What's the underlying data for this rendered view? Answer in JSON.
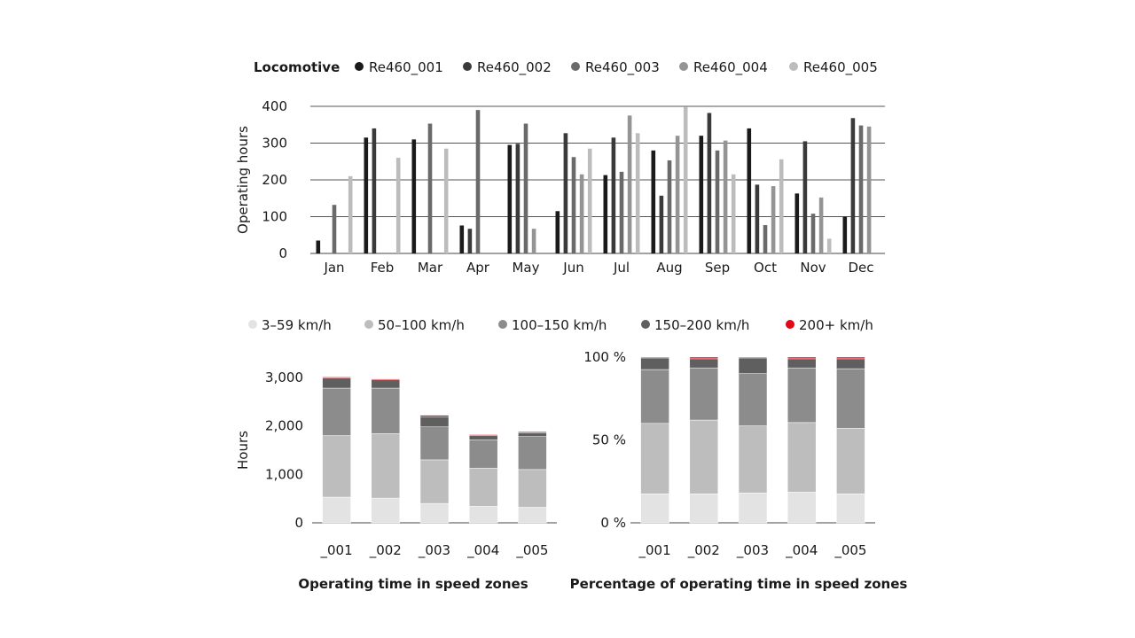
{
  "chart_data": [
    {
      "type": "bar",
      "legend_title": "Locomotive",
      "legend_placement": "top",
      "ylabel": "Operating hours",
      "xlabel": "",
      "ylim": [
        0,
        400
      ],
      "yticks": [
        0,
        100,
        200,
        300,
        400
      ],
      "ytick_labels": [
        "0",
        "100",
        "200",
        "300",
        "400"
      ],
      "grid": true,
      "categories": [
        "Jan",
        "Feb",
        "Mar",
        "Apr",
        "May",
        "Jun",
        "Jul",
        "Aug",
        "Sep",
        "Oct",
        "Nov",
        "Dec"
      ],
      "series": [
        {
          "name": "Re460_001",
          "color": "#1a1a1a",
          "values": [
            35,
            315,
            310,
            76,
            295,
            115,
            213,
            280,
            320,
            340,
            163,
            100
          ]
        },
        {
          "name": "Re460_002",
          "color": "#3a3a3a",
          "values": [
            0,
            340,
            0,
            67,
            298,
            327,
            315,
            157,
            382,
            187,
            305,
            368
          ]
        },
        {
          "name": "Re460_003",
          "color": "#6a6a6a",
          "values": [
            132,
            0,
            353,
            390,
            353,
            262,
            222,
            253,
            280,
            77,
            108,
            348
          ]
        },
        {
          "name": "Re460_004",
          "color": "#949494",
          "values": [
            0,
            0,
            0,
            0,
            67,
            215,
            375,
            320,
            307,
            183,
            152,
            345
          ]
        },
        {
          "name": "Re460_005",
          "color": "#bcbcbc",
          "values": [
            210,
            260,
            285,
            0,
            0,
            285,
            327,
            398,
            215,
            256,
            40,
            0
          ]
        }
      ]
    },
    {
      "type": "bar",
      "stacked": true,
      "title": "Operating time in speed zones",
      "ylabel": "Hours",
      "xlabel": "",
      "ylim": [
        0,
        3000
      ],
      "yticks": [
        0,
        1000,
        2000,
        3000
      ],
      "ytick_labels": [
        "0",
        "1,000",
        "2,000",
        "3,000"
      ],
      "categories": [
        "_001",
        "_002",
        "_003",
        "_004",
        "_005"
      ],
      "series": [
        {
          "name": "3–59 km/h",
          "color": "#e3e3e3",
          "values": [
            530,
            510,
            400,
            340,
            320
          ]
        },
        {
          "name": "50–100 km/h",
          "color": "#bdbdbd",
          "values": [
            1270,
            1330,
            900,
            790,
            780
          ]
        },
        {
          "name": "100–150 km/h",
          "color": "#8c8c8c",
          "values": [
            980,
            940,
            680,
            580,
            680
          ]
        },
        {
          "name": "150–200 km/h",
          "color": "#5f5f5f",
          "values": [
            210,
            170,
            210,
            90,
            80
          ]
        },
        {
          "name": "200+ km/h",
          "color": "#e30613",
          "values": [
            20,
            20,
            30,
            20,
            20
          ]
        }
      ]
    },
    {
      "type": "bar",
      "stacked": true,
      "title": "Percentage of operating time in speed zones",
      "ylabel": "",
      "xlabel": "",
      "ylim": [
        0,
        100
      ],
      "yticks": [
        0,
        50,
        100
      ],
      "ytick_labels": [
        "0 %",
        "50 %",
        "100 %"
      ],
      "categories": [
        "_001",
        "_002",
        "_003",
        "_004",
        "_005"
      ],
      "series": [
        {
          "name": "3–59 km/h",
          "color": "#e3e3e3",
          "values": [
            17.5,
            17.5,
            18,
            18.5,
            17.5
          ]
        },
        {
          "name": "50–100 km/h",
          "color": "#bdbdbd",
          "values": [
            42.5,
            44.5,
            40.5,
            42,
            39.5
          ]
        },
        {
          "name": "100–150 km/h",
          "color": "#8c8c8c",
          "values": [
            32.5,
            31.5,
            31.5,
            33,
            36
          ]
        },
        {
          "name": "150–200 km/h",
          "color": "#5f5f5f",
          "values": [
            7,
            5.5,
            9.5,
            5.5,
            6
          ]
        },
        {
          "name": "200+ km/h",
          "color": "#e30613",
          "values": [
            0.5,
            1,
            0.5,
            1,
            1
          ]
        }
      ]
    }
  ],
  "speed_legend": [
    {
      "name": "3–59 km/h",
      "color": "#e3e3e3"
    },
    {
      "name": "50–100 km/h",
      "color": "#bdbdbd"
    },
    {
      "name": "100–150 km/h",
      "color": "#8c8c8c"
    },
    {
      "name": "150–200 km/h",
      "color": "#5f5f5f"
    },
    {
      "name": "200+ km/h",
      "color": "#e30613"
    }
  ]
}
